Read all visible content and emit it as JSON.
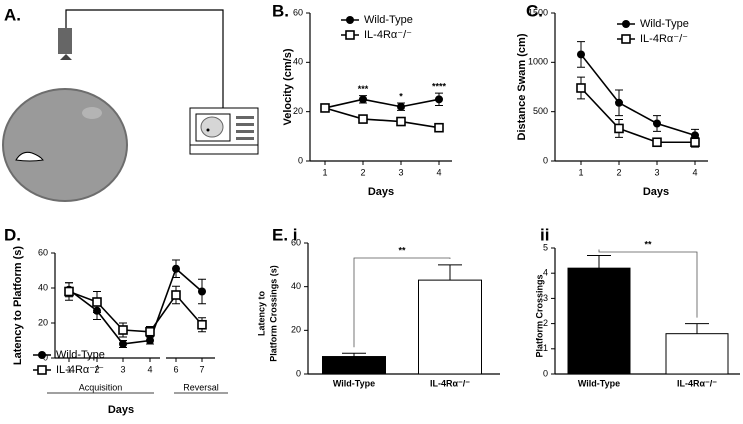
{
  "diagram": {
    "panel_label": "A."
  },
  "chart_data": [
    {
      "panel_label": "B.",
      "type": "line",
      "ylabel": "Velocity (cm/s)",
      "xlabel": "Days",
      "categories": [
        "1",
        "2",
        "3",
        "4"
      ],
      "ylim": [
        0,
        60
      ],
      "yticks": [
        0,
        20,
        40,
        60
      ],
      "significance": [
        null,
        "***",
        "*",
        "****"
      ],
      "series": [
        {
          "name": "Wild-Type",
          "color": "#000000",
          "marker": "circle",
          "values": [
            21.5,
            25,
            22,
            25
          ],
          "errors": [
            1.5,
            1.5,
            1.5,
            2.5
          ]
        },
        {
          "name": "IL-4Rα⁻/⁻",
          "color": "#000000",
          "marker": "square",
          "values": [
            21.5,
            17,
            16,
            13.5
          ],
          "errors": [
            1.5,
            1,
            1,
            1
          ]
        }
      ]
    },
    {
      "panel_label": "C.",
      "type": "line",
      "ylabel": "Distance Swam (cm)",
      "xlabel": "Days",
      "categories": [
        "1",
        "2",
        "3",
        "4"
      ],
      "ylim": [
        0,
        1500
      ],
      "yticks": [
        0,
        500,
        1000,
        1500
      ],
      "series": [
        {
          "name": "Wild-Type",
          "color": "#000000",
          "marker": "circle",
          "values": [
            1080,
            590,
            380,
            260
          ],
          "errors": [
            130,
            130,
            80,
            60
          ]
        },
        {
          "name": "IL-4Rα⁻/⁻",
          "color": "#000000",
          "marker": "square",
          "values": [
            740,
            330,
            190,
            190
          ],
          "errors": [
            110,
            90,
            40,
            50
          ]
        }
      ]
    },
    {
      "panel_label": "D.",
      "type": "line",
      "ylabel": "Latency to Platform (s)",
      "xlabel": "Days",
      "groups": [
        "Acquisition",
        "Reversal"
      ],
      "categories": [
        "1",
        "2",
        "3",
        "4",
        "6",
        "7"
      ],
      "ylim": [
        0,
        60
      ],
      "yticks": [
        0,
        20,
        40,
        60
      ],
      "series": [
        {
          "name": "Wild-Type",
          "color": "#000000",
          "marker": "circle",
          "values": [
            39,
            27,
            8,
            10,
            51,
            38
          ],
          "errors": [
            4,
            5,
            2,
            2,
            5,
            7
          ]
        },
        {
          "name": "IL-4Rα⁻/⁻",
          "color": "#000000",
          "marker": "square",
          "values": [
            38,
            32,
            16,
            15,
            36,
            19
          ],
          "errors": [
            5,
            6,
            4,
            3,
            5,
            4
          ]
        }
      ]
    },
    {
      "panel_label": "E. i",
      "type": "bar",
      "ylabel_lines": [
        "Latency to",
        "Platform Crossings (s)"
      ],
      "categories": [
        "Wild-Type",
        "IL-4Rα⁻/⁻"
      ],
      "values": [
        8,
        43
      ],
      "errors": [
        1.5,
        7
      ],
      "colors": [
        "#000000",
        "#ffffff"
      ],
      "significance": "**",
      "ylim": [
        0,
        60
      ],
      "yticks": [
        0,
        20,
        40,
        60
      ]
    },
    {
      "panel_label": "ii",
      "type": "bar",
      "ylabel_lines": [
        "Platform Crossings"
      ],
      "categories": [
        "Wild-Type",
        "IL-4Rα⁻/⁻"
      ],
      "values": [
        4.2,
        1.6
      ],
      "errors": [
        0.5,
        0.4
      ],
      "colors": [
        "#000000",
        "#ffffff"
      ],
      "significance": "**",
      "ylim": [
        0,
        5
      ],
      "yticks": [
        0,
        1,
        2,
        3,
        4,
        5
      ]
    }
  ]
}
